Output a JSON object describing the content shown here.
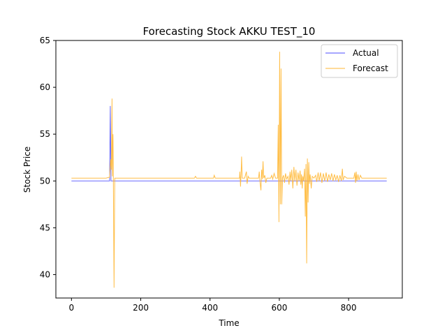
{
  "chart_data": {
    "type": "line",
    "title": "Forecasting Stock AKKU TEST_10",
    "xlabel": "Time",
    "ylabel": "Stock Price",
    "xlim": [
      -45,
      955
    ],
    "ylim": [
      37.5,
      65
    ],
    "xticks": [
      0,
      200,
      400,
      600,
      800
    ],
    "yticks": [
      40,
      45,
      50,
      55,
      60,
      65
    ],
    "grid": false,
    "legend_position": "top-right",
    "series": [
      {
        "name": "Actual",
        "color": "#4d4dff",
        "points": [
          [
            0,
            50
          ],
          [
            110,
            50
          ],
          [
            112,
            58
          ],
          [
            114,
            50
          ],
          [
            910,
            50
          ]
        ]
      },
      {
        "name": "Forecast",
        "color": "#ffb733",
        "points": [
          [
            0,
            50.3
          ],
          [
            100,
            50.3
          ],
          [
            110,
            50.4
          ],
          [
            113,
            52.3
          ],
          [
            115,
            51.2
          ],
          [
            117,
            58.8
          ],
          [
            118,
            50.5
          ],
          [
            120,
            55
          ],
          [
            121,
            50
          ],
          [
            123,
            38.6
          ],
          [
            125,
            50.3
          ],
          [
            130,
            50.3
          ],
          [
            300,
            50.3
          ],
          [
            355,
            50.3
          ],
          [
            358,
            50.5
          ],
          [
            361,
            50.3
          ],
          [
            410,
            50.3
          ],
          [
            412,
            50.6
          ],
          [
            415,
            50.3
          ],
          [
            485,
            50.3
          ],
          [
            486,
            51
          ],
          [
            488,
            49.4
          ],
          [
            490,
            51.3
          ],
          [
            491,
            52.6
          ],
          [
            493,
            50.3
          ],
          [
            500,
            50.3
          ],
          [
            505,
            51
          ],
          [
            507,
            49.7
          ],
          [
            510,
            50.5
          ],
          [
            513,
            50.3
          ],
          [
            540,
            50.3
          ],
          [
            542,
            51
          ],
          [
            544,
            50
          ],
          [
            547,
            49
          ],
          [
            549,
            51.2
          ],
          [
            551,
            50.2
          ],
          [
            553,
            52.1
          ],
          [
            555,
            50.3
          ],
          [
            558,
            50.6
          ],
          [
            561,
            49.8
          ],
          [
            564,
            50.3
          ],
          [
            575,
            50.3
          ],
          [
            578,
            50.6
          ],
          [
            581,
            50.2
          ],
          [
            585,
            50.8
          ],
          [
            589,
            50.3
          ],
          [
            595,
            50.3
          ],
          [
            597,
            56
          ],
          [
            599,
            45.6
          ],
          [
            601,
            63.8
          ],
          [
            603,
            47.5
          ],
          [
            605,
            62
          ],
          [
            607,
            47.5
          ],
          [
            609,
            50.3
          ],
          [
            612,
            50.6
          ],
          [
            615,
            49.8
          ],
          [
            618,
            50.8
          ],
          [
            621,
            50.2
          ],
          [
            625,
            50.5
          ],
          [
            628,
            49.6
          ],
          [
            631,
            51
          ],
          [
            633,
            50
          ],
          [
            636,
            51.2
          ],
          [
            639,
            49.2
          ],
          [
            642,
            51.5
          ],
          [
            645,
            50
          ],
          [
            648,
            51.2
          ],
          [
            651,
            49.5
          ],
          [
            654,
            50.9
          ],
          [
            657,
            50
          ],
          [
            660,
            51.1
          ],
          [
            662,
            49.6
          ],
          [
            664,
            50.7
          ],
          [
            666,
            49.2
          ],
          [
            668,
            50.5
          ],
          [
            670,
            50
          ],
          [
            673,
            51.3
          ],
          [
            675,
            46.2
          ],
          [
            677,
            51.8
          ],
          [
            679,
            41.2
          ],
          [
            681,
            52.4
          ],
          [
            683,
            47.7
          ],
          [
            685,
            52
          ],
          [
            687,
            49.7
          ],
          [
            689,
            50.7
          ],
          [
            692,
            49.2
          ],
          [
            695,
            50.5
          ],
          [
            700,
            50.3
          ],
          [
            705,
            50.6
          ],
          [
            708,
            49.9
          ],
          [
            712,
            50.9
          ],
          [
            715,
            50
          ],
          [
            719,
            50.9
          ],
          [
            723,
            49.8
          ],
          [
            727,
            50.8
          ],
          [
            731,
            50
          ],
          [
            735,
            50.9
          ],
          [
            739,
            49.9
          ],
          [
            743,
            50.7
          ],
          [
            747,
            50.1
          ],
          [
            751,
            50.8
          ],
          [
            755,
            50
          ],
          [
            759,
            50.7
          ],
          [
            763,
            50.1
          ],
          [
            767,
            50.6
          ],
          [
            771,
            49.9
          ],
          [
            775,
            50.6
          ],
          [
            779,
            50
          ],
          [
            782,
            51.3
          ],
          [
            784,
            50.1
          ],
          [
            788,
            50.5
          ],
          [
            795,
            50.3
          ],
          [
            815,
            50.3
          ],
          [
            818,
            50.9
          ],
          [
            820,
            49.8
          ],
          [
            822,
            51
          ],
          [
            824,
            50
          ],
          [
            827,
            50.7
          ],
          [
            830,
            50.1
          ],
          [
            834,
            50.6
          ],
          [
            838,
            50.3
          ],
          [
            905,
            50.3
          ],
          [
            910,
            50.3
          ]
        ]
      }
    ]
  }
}
